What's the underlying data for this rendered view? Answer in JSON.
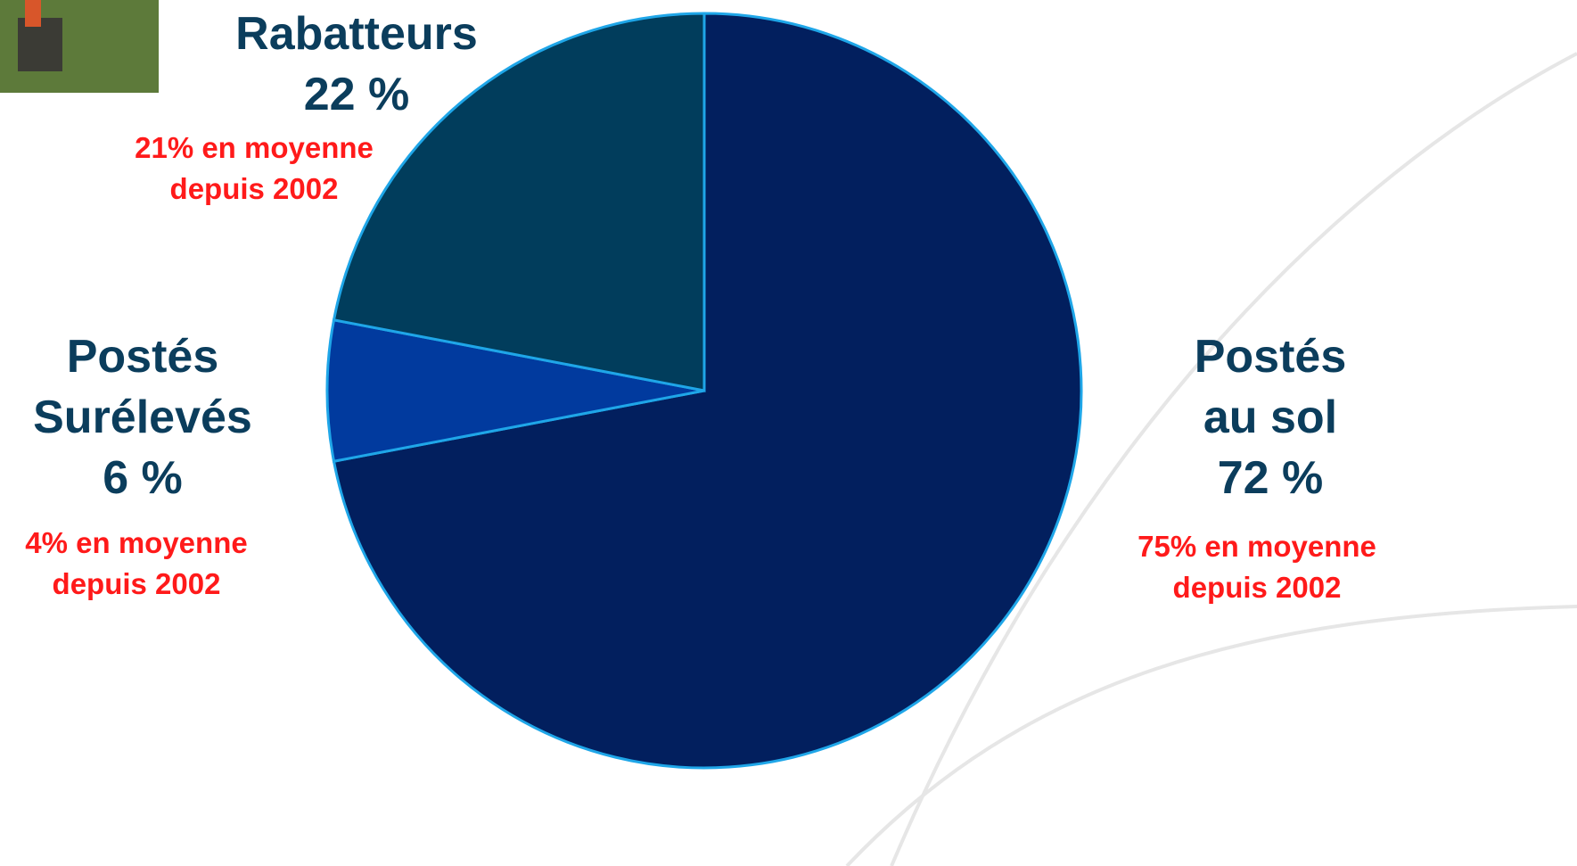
{
  "chart_data": {
    "type": "pie",
    "categories": [
      "Postés au sol",
      "Postés Surélevés",
      "Rabatteurs"
    ],
    "values": [
      72,
      6,
      22
    ],
    "value_labels": [
      "72 %",
      "6 %",
      "22 %"
    ],
    "colors": [
      "#021f5e",
      "#013a9e",
      "#013d5c"
    ],
    "annotations": [
      "75% en moyenne depuis 2002",
      "4% en moyenne depuis 2002",
      "21% en moyenne depuis 2002"
    ]
  }
}
